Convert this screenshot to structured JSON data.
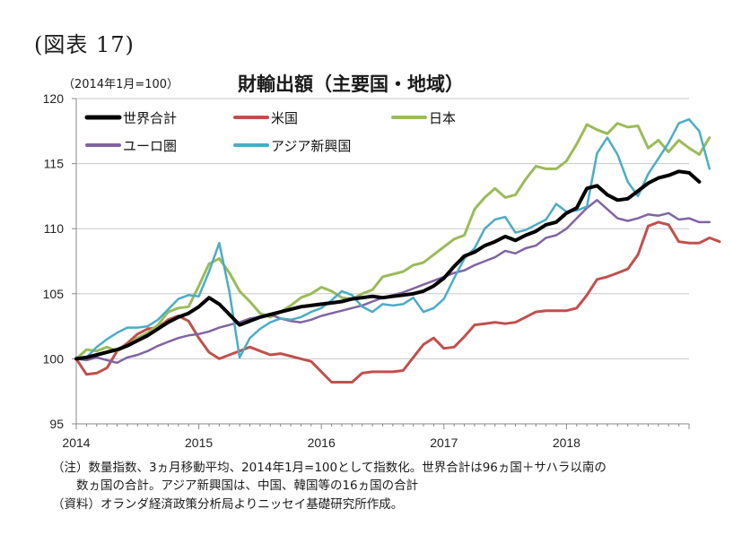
{
  "header": {
    "figure_label": "(図表 17)",
    "unit": "（2014年1月=100）",
    "title": "財輸出額（主要国・地域）"
  },
  "notes": [
    "（注）数量指数、3ヵ月移動平均、2014年1月=100として指数化。世界合計は96ヵ国＋サハラ以南の",
    "　　数ヵ国の合計。アジア新興国は、中国、韓国等の16ヵ国の合計",
    "（資料）オランダ経済政策分析局よりニッセイ基礎研究所作成。"
  ],
  "chart_data": {
    "type": "line",
    "title": "財輸出額（主要国・地域）",
    "ylabel": "（2014年1月=100）",
    "xlabel": "",
    "ylim": [
      95,
      120
    ],
    "yticks": [
      95,
      100,
      105,
      110,
      115,
      120
    ],
    "xticks": [
      "2014",
      "2015",
      "2016",
      "2017",
      "2018"
    ],
    "x_start": "2014-01",
    "grid": true,
    "legend_position": "top-left",
    "series": [
      {
        "name": "世界合計",
        "color": "#000000",
        "width": 4,
        "values": [
          100.0,
          100.1,
          100.3,
          100.5,
          100.7,
          101.0,
          101.4,
          101.8,
          102.3,
          102.8,
          103.2,
          103.5,
          104.0,
          104.7,
          104.2,
          103.4,
          102.6,
          102.9,
          103.2,
          103.4,
          103.6,
          103.8,
          104.0,
          104.1,
          104.2,
          104.3,
          104.4,
          104.6,
          104.7,
          104.8,
          104.7,
          104.8,
          104.9,
          105.0,
          105.2,
          105.6,
          106.2,
          107.1,
          107.9,
          108.2,
          108.7,
          109.0,
          109.4,
          109.1,
          109.5,
          109.8,
          110.3,
          110.5,
          111.2,
          111.6,
          113.1,
          113.3,
          112.6,
          112.2,
          112.3,
          112.9,
          113.5,
          113.9,
          114.1,
          114.4,
          114.3,
          113.6
        ]
      },
      {
        "name": "米国",
        "color": "#c0504d",
        "width": 3,
        "values": [
          100.0,
          98.8,
          98.9,
          99.3,
          100.6,
          101.2,
          101.9,
          102.3,
          102.4,
          103.0,
          103.3,
          102.9,
          101.6,
          100.5,
          100.0,
          100.3,
          100.6,
          100.9,
          100.6,
          100.3,
          100.4,
          100.2,
          100.0,
          99.8,
          99.0,
          98.2,
          98.2,
          98.2,
          98.9,
          99.0,
          99.0,
          99.0,
          99.1,
          100.1,
          101.1,
          101.6,
          100.8,
          100.9,
          101.7,
          102.6,
          102.7,
          102.8,
          102.7,
          102.8,
          103.2,
          103.6,
          103.7,
          103.7,
          103.7,
          103.9,
          104.9,
          106.1,
          106.3,
          106.6,
          106.9,
          108.0,
          110.2,
          110.5,
          110.3,
          109.0,
          108.9,
          108.9,
          109.3,
          109.0
        ]
      },
      {
        "name": "日本",
        "color": "#9bbb59",
        "width": 3,
        "values": [
          100.0,
          100.7,
          100.6,
          100.9,
          100.6,
          101.0,
          101.6,
          102.0,
          102.6,
          103.6,
          103.9,
          104.0,
          105.6,
          107.3,
          107.7,
          106.6,
          105.2,
          104.4,
          103.5,
          103.2,
          103.6,
          104.1,
          104.7,
          105.0,
          105.5,
          105.2,
          104.7,
          104.6,
          105.0,
          105.3,
          106.3,
          106.5,
          106.7,
          107.2,
          107.4,
          108.0,
          108.6,
          109.2,
          109.5,
          111.5,
          112.4,
          113.1,
          112.4,
          112.6,
          113.8,
          114.8,
          114.6,
          114.6,
          115.2,
          116.5,
          118.0,
          117.6,
          117.3,
          118.1,
          117.8,
          117.9,
          116.2,
          116.8,
          115.9,
          116.8,
          116.2,
          115.7,
          117.0
        ]
      },
      {
        "name": "ユーロ圏",
        "color": "#8064a2",
        "width": 2.5,
        "values": [
          100.0,
          99.9,
          100.1,
          99.9,
          99.7,
          100.1,
          100.3,
          100.6,
          101.0,
          101.3,
          101.6,
          101.8,
          101.9,
          102.1,
          102.4,
          102.6,
          102.8,
          103.1,
          103.2,
          103.4,
          103.1,
          102.9,
          102.8,
          103.0,
          103.3,
          103.5,
          103.7,
          103.9,
          104.1,
          104.4,
          104.7,
          104.9,
          105.1,
          105.4,
          105.7,
          106.0,
          106.3,
          106.6,
          106.8,
          107.2,
          107.5,
          107.8,
          108.3,
          108.1,
          108.5,
          108.7,
          109.3,
          109.5,
          110.0,
          110.8,
          111.6,
          112.2,
          111.5,
          110.8,
          110.6,
          110.8,
          111.1,
          111.0,
          111.2,
          110.7,
          110.8,
          110.5,
          110.5
        ]
      },
      {
        "name": "アジア新興国",
        "color": "#4bacc6",
        "width": 2.5,
        "values": [
          100.0,
          100.1,
          100.9,
          101.5,
          102.0,
          102.4,
          102.4,
          102.5,
          103.0,
          103.8,
          104.6,
          104.9,
          104.8,
          106.7,
          108.9,
          105.1,
          100.1,
          101.6,
          102.3,
          102.8,
          103.1,
          103.0,
          103.2,
          103.6,
          103.9,
          104.5,
          105.2,
          104.9,
          104.0,
          103.6,
          104.2,
          104.1,
          104.2,
          104.7,
          103.6,
          103.9,
          104.6,
          106.2,
          107.7,
          108.5,
          110.0,
          110.7,
          110.9,
          109.7,
          109.9,
          110.3,
          110.7,
          111.9,
          111.3,
          111.4,
          111.7,
          115.8,
          117.0,
          115.7,
          113.6,
          112.5,
          114.2,
          115.4,
          116.6,
          118.1,
          118.4,
          117.5,
          114.6
        ]
      }
    ]
  }
}
